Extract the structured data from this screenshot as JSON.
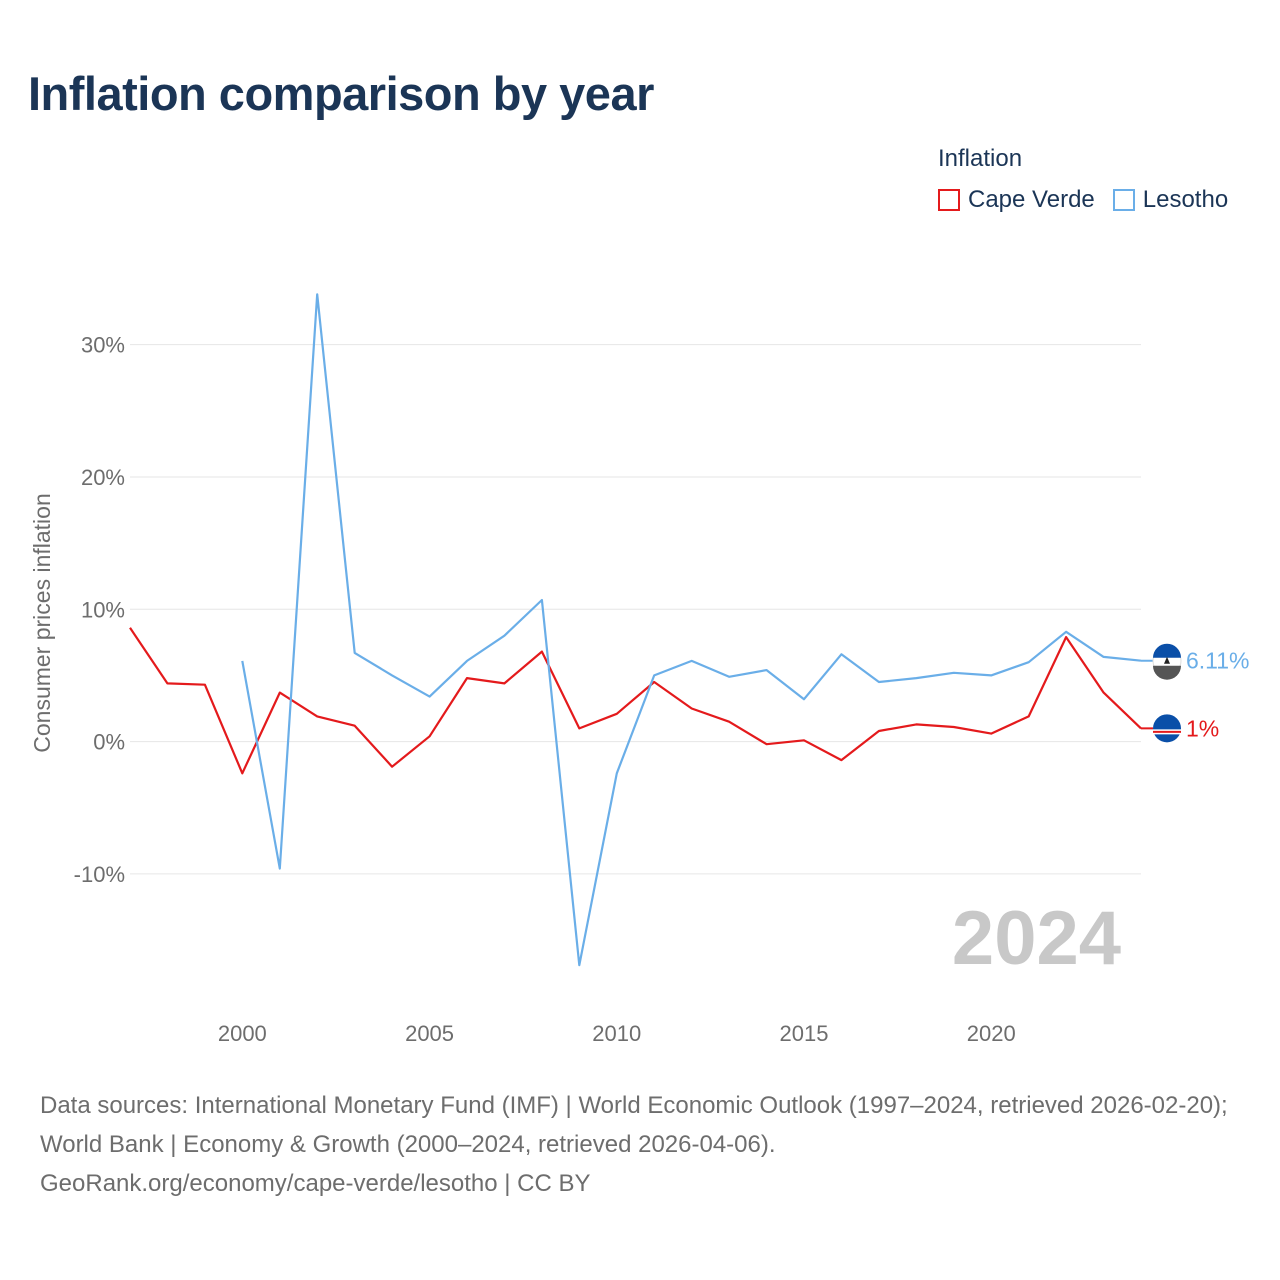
{
  "title": "Inflation comparison by year",
  "legend": {
    "title": "Inflation",
    "items": [
      {
        "label": "Cape Verde",
        "color": "#e41a1c"
      },
      {
        "label": "Lesotho",
        "color": "#6aaee8"
      }
    ]
  },
  "year_watermark": "2024",
  "footer": {
    "sources": "Data sources: International Monetary Fund (IMF) | World Economic Outlook (1997–2024, retrieved 2026-02-20); World Bank | Economy & Growth (2000–2024, retrieved 2026-04-06).",
    "credit": "GeoRank.org/economy/cape-verde/lesotho | CC BY"
  },
  "chart_data": {
    "type": "line",
    "title": "Inflation comparison by year",
    "xlabel": "",
    "ylabel": "Consumer prices inflation",
    "xlim": [
      1997,
      2024
    ],
    "ylim": [
      -19,
      37
    ],
    "x_ticks": [
      2000,
      2005,
      2010,
      2015,
      2020
    ],
    "y_ticks": [
      -10,
      0,
      10,
      20,
      30
    ],
    "y_tick_labels": [
      "-10%",
      "0%",
      "10%",
      "20%",
      "30%"
    ],
    "grid": true,
    "series": [
      {
        "name": "Cape Verde",
        "color": "#e41a1c",
        "end_label": "1%",
        "x": [
          1997,
          1998,
          1999,
          2000,
          2001,
          2002,
          2003,
          2004,
          2005,
          2006,
          2007,
          2008,
          2009,
          2010,
          2011,
          2012,
          2013,
          2014,
          2015,
          2016,
          2017,
          2018,
          2019,
          2020,
          2021,
          2022,
          2023,
          2024
        ],
        "values": [
          8.6,
          4.4,
          4.3,
          -2.4,
          3.7,
          1.9,
          1.2,
          -1.9,
          0.4,
          4.8,
          4.4,
          6.8,
          1.0,
          2.1,
          4.5,
          2.5,
          1.5,
          -0.2,
          0.1,
          -1.4,
          0.8,
          1.3,
          1.1,
          0.6,
          1.9,
          7.9,
          3.7,
          1.0
        ]
      },
      {
        "name": "Lesotho",
        "color": "#6aaee8",
        "end_label": "6.11%",
        "x": [
          2000,
          2001,
          2002,
          2003,
          2004,
          2005,
          2006,
          2007,
          2008,
          2009,
          2010,
          2011,
          2012,
          2013,
          2014,
          2015,
          2016,
          2017,
          2018,
          2019,
          2020,
          2021,
          2022,
          2023,
          2024
        ],
        "values": [
          6.1,
          -9.6,
          33.8,
          6.7,
          5.0,
          3.4,
          6.1,
          8.0,
          10.7,
          -16.9,
          -2.4,
          5.0,
          6.1,
          4.9,
          5.4,
          3.2,
          6.6,
          4.5,
          4.8,
          5.2,
          5.0,
          6.0,
          8.3,
          6.4,
          6.11
        ]
      }
    ]
  }
}
